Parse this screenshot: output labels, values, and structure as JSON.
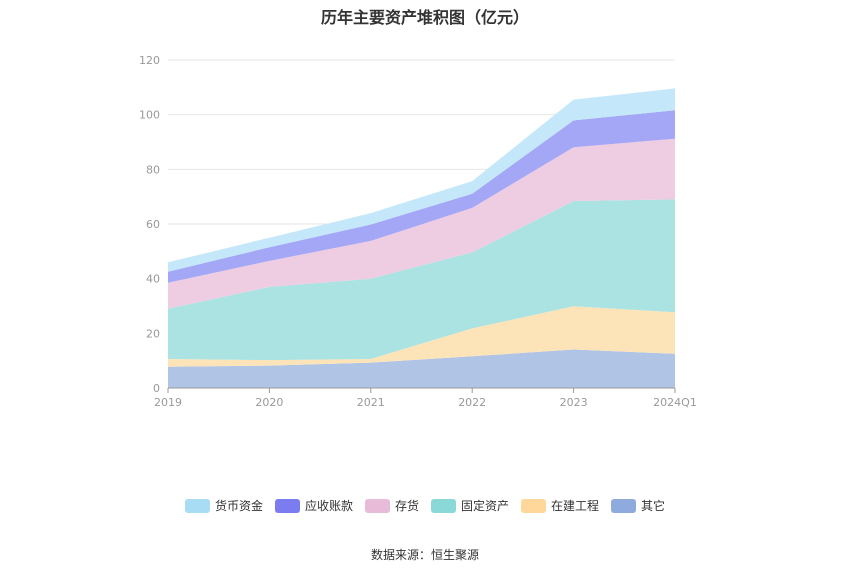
{
  "chart_data": {
    "type": "area",
    "title": "历年主要资产堆积图（亿元）",
    "categories": [
      "2019",
      "2020",
      "2021",
      "2022",
      "2023",
      "2024Q1"
    ],
    "ylim": [
      0,
      120
    ],
    "yticks": [
      0,
      20,
      40,
      60,
      80,
      100,
      120
    ],
    "stacked": true,
    "grid": true,
    "legend_position": "bottom",
    "series": [
      {
        "name": "其它",
        "values": [
          7.8,
          8.2,
          9.3,
          11.6,
          14.1,
          12.5
        ],
        "color": "#8faadc",
        "fill": "#b0c4e6"
      },
      {
        "name": "在建工程",
        "values": [
          2.8,
          2.0,
          1.3,
          10.2,
          15.8,
          15.2
        ],
        "color": "#ffd79a",
        "fill": "#fde4b8"
      },
      {
        "name": "固定资产",
        "values": [
          18.4,
          26.8,
          29.4,
          27.8,
          38.5,
          41.3
        ],
        "color": "#8ad8d8",
        "fill": "#abe3e3"
      },
      {
        "name": "存货",
        "values": [
          9.5,
          9.5,
          13.8,
          16.3,
          19.7,
          22.2
        ],
        "color": "#e8bcd8",
        "fill": "#eecde2"
      },
      {
        "name": "应收账款",
        "values": [
          4.0,
          5.0,
          6.0,
          5.2,
          9.8,
          10.4
        ],
        "color": "#7a7cf0",
        "fill": "#a3a7f5"
      },
      {
        "name": "货币资金",
        "values": [
          3.5,
          3.5,
          4.2,
          4.6,
          7.6,
          8.0
        ],
        "color": "#a8dcf5",
        "fill": "#c4e8fa"
      }
    ],
    "legend_order": [
      "货币资金",
      "应收账款",
      "存货",
      "固定资产",
      "在建工程",
      "其它"
    ]
  },
  "footer": {
    "source": "数据来源：恒生聚源"
  }
}
